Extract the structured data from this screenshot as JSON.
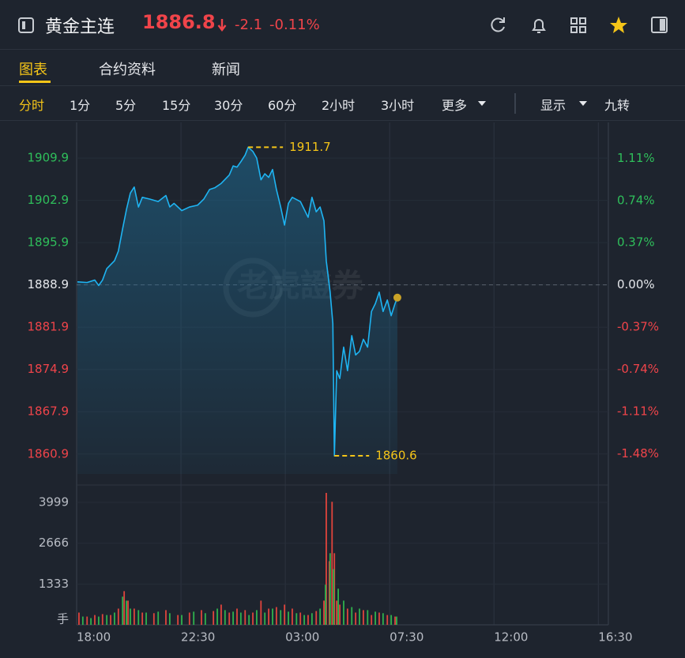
{
  "header": {
    "title": "黄金主连",
    "price": "1886.8",
    "change": "-2.1",
    "change_pct": "-0.11%"
  },
  "tabs": [
    "图表",
    "合约资料",
    "新闻"
  ],
  "periods": [
    "分时",
    "1分",
    "5分",
    "15分",
    "30分",
    "60分",
    "2小时",
    "3小时",
    "更多"
  ],
  "options": [
    "显示",
    "九转"
  ],
  "chart_data": [
    {
      "type": "line",
      "watermark": "老虎證券",
      "xlim": [
        0,
        1376
      ],
      "ylim": [
        1857.6,
        1915.8
      ],
      "yticks": [
        1909.9,
        1902.9,
        1895.9,
        1888.9,
        1881.9,
        1874.9,
        1867.9,
        1860.9
      ],
      "y2lim": [
        -1.657,
        1.424
      ],
      "y2ticks": [
        {
          "value": 1.11,
          "label": "1.11%"
        },
        {
          "value": 0.74,
          "label": "0.74%"
        },
        {
          "value": 0.37,
          "label": "0.37%"
        },
        {
          "value": 0,
          "label": "0.00%"
        },
        {
          "value": -0.37,
          "label": "-0.37%"
        },
        {
          "value": -0.74,
          "label": "-0.74%"
        },
        {
          "value": -1.11,
          "label": "-1.11%"
        },
        {
          "value": -1.48,
          "label": "-1.48%"
        }
      ],
      "reference": 1888.9,
      "up_color": "#2fbf5b",
      "down_color": "#f0444a",
      "flat_color": "#e6e8ec",
      "annotations": [
        1911.7,
        1860.6
      ],
      "annotation_color": "#f5c518",
      "series": [
        {
          "color": "#1eb4f2",
          "x": [
            2,
            27,
            47,
            57,
            67,
            78,
            98,
            108,
            119,
            129,
            139,
            149,
            160,
            170,
            190,
            211,
            231,
            241,
            252,
            272,
            292,
            313,
            329,
            344,
            358,
            374,
            395,
            405,
            415,
            425,
            436,
            444,
            456,
            466,
            477,
            487,
            497,
            507,
            517,
            528,
            538,
            548,
            558,
            579,
            589,
            599,
            609,
            620,
            630,
            640,
            646,
            656,
            663,
            667,
            673,
            681,
            691,
            701,
            712,
            722,
            732,
            742,
            753,
            763,
            773,
            783,
            793,
            804,
            814,
            824,
            830
          ],
          "values": [
            1889.4,
            1889.3,
            1889.7,
            1888.8,
            1889.7,
            1891.6,
            1892.9,
            1894.5,
            1898.2,
            1901.4,
            1904.1,
            1905.1,
            1901.8,
            1903.4,
            1903.1,
            1902.7,
            1903.7,
            1901.8,
            1902.4,
            1901.2,
            1901.8,
            1902.1,
            1903.1,
            1904.7,
            1905.0,
            1905.7,
            1907.1,
            1908.6,
            1908.4,
            1909.3,
            1910.4,
            1911.7,
            1911.0,
            1909.9,
            1906.3,
            1907.3,
            1906.7,
            1908.0,
            1904.7,
            1901.8,
            1898.8,
            1902.4,
            1903.4,
            1902.7,
            1901.4,
            1900.1,
            1903.4,
            1901.0,
            1901.8,
            1899.5,
            1892.9,
            1887.7,
            1882.5,
            1860.6,
            1874.7,
            1873.4,
            1878.6,
            1874.7,
            1880.5,
            1877.3,
            1877.9,
            1879.9,
            1878.6,
            1884.5,
            1885.8,
            1887.7,
            1884.5,
            1886.4,
            1883.8,
            1885.8,
            1886.8
          ]
        }
      ]
    },
    {
      "type": "bar",
      "ylabel": "手",
      "xlim": [
        0,
        1376
      ],
      "ylim": [
        0,
        4413
      ],
      "yticks": [
        3999,
        2666,
        1333
      ],
      "xticks": [
        {
          "value": 0,
          "label": "18:00"
        },
        {
          "value": 270,
          "label": "22:30"
        },
        {
          "value": 540,
          "label": "03:00"
        },
        {
          "value": 810,
          "label": "07:30"
        },
        {
          "value": 1080,
          "label": "12:00"
        },
        {
          "value": 1350,
          "label": "16:30"
        }
      ],
      "series": [
        {
          "color": "#e0443c",
          "x": [
            6,
            27,
            47,
            67,
            88,
            108,
            123,
            133,
            149,
            170,
            200,
            231,
            262,
            292,
            323,
            354,
            374,
            395,
            415,
            436,
            456,
            477,
            497,
            517,
            538,
            558,
            579,
            599,
            620,
            640,
            646,
            654,
            661,
            667,
            673,
            681,
            701,
            722,
            742,
            763,
            783,
            804,
            824
          ],
          "values": [
            400,
            270,
            320,
            350,
            320,
            530,
            1100,
            790,
            530,
            400,
            380,
            480,
            320,
            400,
            480,
            450,
            660,
            400,
            530,
            480,
            400,
            790,
            530,
            580,
            660,
            530,
            400,
            320,
            450,
            790,
            4310,
            2080,
            4020,
            2340,
            790,
            660,
            530,
            400,
            480,
            320,
            400,
            320,
            270
          ]
        },
        {
          "color": "#2fb24d",
          "x": [
            16,
            37,
            57,
            78,
            98,
            119,
            129,
            139,
            160,
            180,
            211,
            241,
            272,
            303,
            333,
            364,
            384,
            405,
            425,
            446,
            466,
            487,
            507,
            528,
            548,
            569,
            589,
            609,
            630,
            644,
            656,
            665,
            677,
            691,
            712,
            732,
            753,
            773,
            793,
            814,
            828
          ],
          "values": [
            270,
            220,
            270,
            320,
            400,
            920,
            790,
            530,
            480,
            400,
            430,
            380,
            320,
            430,
            380,
            530,
            480,
            430,
            400,
            320,
            480,
            400,
            530,
            480,
            430,
            380,
            320,
            380,
            530,
            1310,
            2340,
            1820,
            1180,
            790,
            580,
            530,
            480,
            430,
            380,
            320,
            270
          ]
        }
      ]
    }
  ]
}
